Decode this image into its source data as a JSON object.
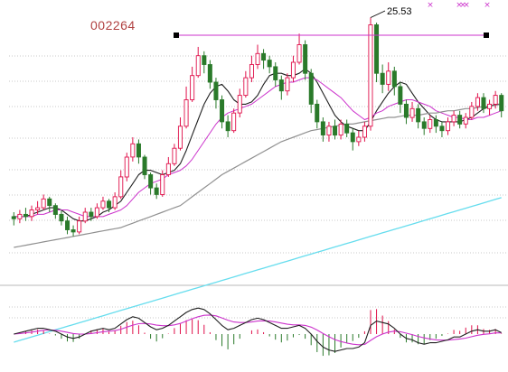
{
  "chart": {
    "stock_code": "002264",
    "high_label": "25.53",
    "colors": {
      "up": "#e0104a",
      "down": "#2a7a2a",
      "ma_short": "#202020",
      "ma_mid": "#cc33cc",
      "ma_long": "#909090",
      "ma_year": "#66ddee",
      "macd_dif": "#202020",
      "macd_dea": "#cc33cc",
      "marker": "#cc33cc",
      "bracket": "#cc33cc"
    }
  },
  "chart_data": {
    "type": "candlestick",
    "price_axis": {
      "ylim": [
        14.2,
        26.0
      ],
      "tick_labels_shown": false
    },
    "candles": [
      [
        16.5,
        16.4,
        16.7,
        16.1
      ],
      [
        16.4,
        16.6,
        16.8,
        16.2
      ],
      [
        16.6,
        16.5,
        16.9,
        16.3
      ],
      [
        16.5,
        16.8,
        17.0,
        16.3
      ],
      [
        16.8,
        16.9,
        17.2,
        16.6
      ],
      [
        16.9,
        17.3,
        17.5,
        16.8
      ],
      [
        17.3,
        17.0,
        17.4,
        16.7
      ],
      [
        17.0,
        16.6,
        17.1,
        16.4
      ],
      [
        16.6,
        16.3,
        16.8,
        16.1
      ],
      [
        16.3,
        15.9,
        16.5,
        15.7
      ],
      [
        15.9,
        15.8,
        16.1,
        15.6
      ],
      [
        15.8,
        16.3,
        16.5,
        15.7
      ],
      [
        16.3,
        16.7,
        16.9,
        16.2
      ],
      [
        16.7,
        16.5,
        16.9,
        16.3
      ],
      [
        16.5,
        16.9,
        17.1,
        16.4
      ],
      [
        16.9,
        17.2,
        17.4,
        16.8
      ],
      [
        17.2,
        16.9,
        17.3,
        16.7
      ],
      [
        16.9,
        17.4,
        17.6,
        16.8
      ],
      [
        17.4,
        18.3,
        18.6,
        17.3
      ],
      [
        18.3,
        19.2,
        19.4,
        18.1
      ],
      [
        19.2,
        19.8,
        20.1,
        19.0
      ],
      [
        19.8,
        19.2,
        20.0,
        18.9
      ],
      [
        19.2,
        18.4,
        19.3,
        18.2
      ],
      [
        18.4,
        17.8,
        18.5,
        17.5
      ],
      [
        17.8,
        17.5,
        18.0,
        17.3
      ],
      [
        17.5,
        18.4,
        18.6,
        17.4
      ],
      [
        18.4,
        18.9,
        19.2,
        18.3
      ],
      [
        18.9,
        19.6,
        19.8,
        18.8
      ],
      [
        19.6,
        20.6,
        21.0,
        19.5
      ],
      [
        20.6,
        21.8,
        22.4,
        20.5
      ],
      [
        21.8,
        22.9,
        23.3,
        21.7
      ],
      [
        22.9,
        23.8,
        24.2,
        22.8
      ],
      [
        23.8,
        23.4,
        24.0,
        23.0
      ],
      [
        23.4,
        22.6,
        23.6,
        22.3
      ],
      [
        22.6,
        21.8,
        22.8,
        21.4
      ],
      [
        21.8,
        20.8,
        22.0,
        20.5
      ],
      [
        20.8,
        20.4,
        21.1,
        20.1
      ],
      [
        20.4,
        21.2,
        21.4,
        20.3
      ],
      [
        21.2,
        22.0,
        22.3,
        21.0
      ],
      [
        22.0,
        22.8,
        23.1,
        21.9
      ],
      [
        22.8,
        23.4,
        23.8,
        22.6
      ],
      [
        23.4,
        23.9,
        24.3,
        23.2
      ],
      [
        23.9,
        23.6,
        24.1,
        23.2
      ],
      [
        23.6,
        23.3,
        23.8,
        23.0
      ],
      [
        23.3,
        22.7,
        23.5,
        22.4
      ],
      [
        22.7,
        22.2,
        22.9,
        21.8
      ],
      [
        22.2,
        22.8,
        23.0,
        22.0
      ],
      [
        22.8,
        23.5,
        23.8,
        22.6
      ],
      [
        23.5,
        24.3,
        24.8,
        23.4
      ],
      [
        24.3,
        23.0,
        24.5,
        22.7
      ],
      [
        23.0,
        21.6,
        23.2,
        21.2
      ],
      [
        21.6,
        20.8,
        21.8,
        20.5
      ],
      [
        20.8,
        20.2,
        21.0,
        19.9
      ],
      [
        20.2,
        20.6,
        20.8,
        19.9
      ],
      [
        20.6,
        20.2,
        20.9,
        20.0
      ],
      [
        20.2,
        20.7,
        20.9,
        20.0
      ],
      [
        20.7,
        20.3,
        20.9,
        20.1
      ],
      [
        20.3,
        19.9,
        20.5,
        19.5
      ],
      [
        19.9,
        20.1,
        20.4,
        19.7
      ],
      [
        20.1,
        20.6,
        20.8,
        19.9
      ],
      [
        20.6,
        25.2,
        25.53,
        20.4
      ],
      [
        25.2,
        23.0,
        25.3,
        22.6
      ],
      [
        23.0,
        22.5,
        23.4,
        22.1
      ],
      [
        22.5,
        23.1,
        23.5,
        22.2
      ],
      [
        23.1,
        22.4,
        23.3,
        22.0
      ],
      [
        22.4,
        21.6,
        22.6,
        21.2
      ],
      [
        21.6,
        21.0,
        21.8,
        20.7
      ],
      [
        21.0,
        21.4,
        21.7,
        20.8
      ],
      [
        21.4,
        20.8,
        21.6,
        20.5
      ],
      [
        20.8,
        20.5,
        21.0,
        20.2
      ],
      [
        20.5,
        20.9,
        21.1,
        20.3
      ],
      [
        20.9,
        20.6,
        21.1,
        20.3
      ],
      [
        20.6,
        20.4,
        20.8,
        20.1
      ],
      [
        20.4,
        20.8,
        21.0,
        20.2
      ],
      [
        20.8,
        21.1,
        21.3,
        20.6
      ],
      [
        21.1,
        20.7,
        21.3,
        20.5
      ],
      [
        20.7,
        21.0,
        21.2,
        20.5
      ],
      [
        21.0,
        21.5,
        21.7,
        20.9
      ],
      [
        21.5,
        21.9,
        22.1,
        21.3
      ],
      [
        21.9,
        21.4,
        22.1,
        21.2
      ],
      [
        21.4,
        21.6,
        21.8,
        21.1
      ],
      [
        21.6,
        22.0,
        22.2,
        21.4
      ],
      [
        22.0,
        21.3,
        22.1,
        21.0
      ]
    ],
    "moving_averages": [
      {
        "name": "MA-short",
        "values": [
          16.5,
          16.5,
          16.5,
          16.6,
          16.7,
          16.8,
          16.9,
          16.9,
          16.8,
          16.6,
          16.4,
          16.3,
          16.3,
          16.4,
          16.5,
          16.7,
          16.8,
          17.0,
          17.2,
          17.6,
          18.0,
          18.4,
          18.6,
          18.6,
          18.5,
          18.4,
          18.5,
          18.6,
          18.9,
          19.5,
          20.2,
          20.9,
          21.6,
          22.1,
          22.4,
          22.5,
          22.2,
          21.8,
          21.6,
          21.6,
          21.7,
          22.0,
          22.5,
          22.9,
          23.0,
          23.0,
          22.9,
          22.9,
          23.0,
          23.2,
          23.0,
          22.6,
          22.1,
          21.6,
          21.1,
          20.8,
          20.6,
          20.5,
          20.4,
          20.4,
          20.8,
          21.3,
          21.7,
          22.1,
          22.4,
          22.6,
          22.5,
          22.1,
          21.7,
          21.4,
          21.1,
          20.9,
          20.8,
          20.8,
          20.8,
          20.8,
          20.9,
          21.0,
          21.2,
          21.4,
          21.5,
          21.6,
          21.6
        ]
      },
      {
        "name": "MA-mid",
        "values": [
          16.5,
          16.5,
          16.5,
          16.5,
          16.6,
          16.6,
          16.7,
          16.8,
          16.8,
          16.8,
          16.7,
          16.6,
          16.5,
          16.5,
          16.5,
          16.5,
          16.6,
          16.7,
          16.8,
          17.0,
          17.3,
          17.6,
          17.8,
          18.0,
          18.1,
          18.2,
          18.4,
          18.5,
          18.6,
          18.8,
          19.1,
          19.5,
          19.9,
          20.3,
          20.7,
          21.0,
          21.2,
          21.3,
          21.4,
          21.5,
          21.6,
          21.8,
          22.0,
          22.2,
          22.4,
          22.5,
          22.6,
          22.6,
          22.7,
          22.8,
          22.8,
          22.7,
          22.5,
          22.3,
          22.1,
          21.9,
          21.6,
          21.3,
          21.1,
          20.9,
          21.0,
          21.2,
          21.3,
          21.5,
          21.6,
          21.7,
          21.8,
          21.8,
          21.7,
          21.6,
          21.5,
          21.3,
          21.2,
          21.1,
          21.0,
          21.0,
          20.9,
          20.9,
          21.0,
          21.0,
          21.1,
          21.2,
          21.3
        ]
      },
      {
        "name": "MA-long",
        "values": [
          15.1,
          15.15,
          15.2,
          15.25,
          15.3,
          15.35,
          15.4,
          15.45,
          15.5,
          15.55,
          15.6,
          15.65,
          15.7,
          15.75,
          15.8,
          15.85,
          15.9,
          15.95,
          16.0,
          16.1,
          16.2,
          16.3,
          16.4,
          16.5,
          16.6,
          16.7,
          16.8,
          16.9,
          17.0,
          17.2,
          17.4,
          17.6,
          17.8,
          18.0,
          18.2,
          18.4,
          18.55,
          18.7,
          18.85,
          19.0,
          19.15,
          19.3,
          19.45,
          19.6,
          19.75,
          19.9,
          20.0,
          20.1,
          20.2,
          20.3,
          20.4,
          20.45,
          20.5,
          20.55,
          20.6,
          20.65,
          20.7,
          20.7,
          20.75,
          20.8,
          20.85,
          20.9,
          20.95,
          21.0,
          21.0,
          21.05,
          21.1,
          21.1,
          21.1,
          21.15,
          21.2,
          21.2,
          21.25,
          21.3,
          21.3,
          21.35,
          21.4,
          21.4,
          21.45,
          21.5,
          21.5,
          21.55,
          21.6
        ]
      },
      {
        "name": "MA-year",
        "values": [
          10.8,
          10.88,
          10.96,
          11.04,
          11.12,
          11.2,
          11.28,
          11.36,
          11.44,
          11.52,
          11.6,
          11.68,
          11.76,
          11.84,
          11.92,
          12.0,
          12.08,
          12.16,
          12.24,
          12.32,
          12.4,
          12.48,
          12.56,
          12.64,
          12.72,
          12.8,
          12.88,
          12.96,
          13.04,
          13.12,
          13.2,
          13.28,
          13.36,
          13.44,
          13.52,
          13.6,
          13.68,
          13.76,
          13.84,
          13.92,
          14.0,
          14.08,
          14.16,
          14.24,
          14.32,
          14.4,
          14.48,
          14.56,
          14.64,
          14.72,
          14.8,
          14.88,
          14.96,
          15.04,
          15.12,
          15.2,
          15.28,
          15.36,
          15.44,
          15.52,
          15.6,
          15.68,
          15.76,
          15.84,
          15.92,
          16.0,
          16.08,
          16.16,
          16.24,
          16.32,
          16.4,
          16.48,
          16.56,
          16.64,
          16.72,
          16.8,
          16.88,
          16.96,
          17.04,
          17.12,
          17.2,
          17.28,
          17.36
        ]
      }
    ],
    "high_marker": {
      "index": 60,
      "value": 25.53
    },
    "macd": {
      "ylim": [
        -1.0,
        1.0
      ],
      "dif": [
        0.0,
        0.05,
        0.1,
        0.15,
        0.2,
        0.2,
        0.15,
        0.1,
        0.0,
        -0.1,
        -0.15,
        -0.1,
        0.0,
        0.1,
        0.15,
        0.2,
        0.15,
        0.2,
        0.35,
        0.5,
        0.6,
        0.55,
        0.4,
        0.25,
        0.15,
        0.2,
        0.3,
        0.45,
        0.6,
        0.75,
        0.85,
        0.9,
        0.85,
        0.7,
        0.5,
        0.3,
        0.15,
        0.2,
        0.3,
        0.4,
        0.5,
        0.55,
        0.5,
        0.4,
        0.3,
        0.2,
        0.2,
        0.25,
        0.3,
        0.2,
        0.0,
        -0.25,
        -0.45,
        -0.55,
        -0.6,
        -0.55,
        -0.5,
        -0.5,
        -0.45,
        -0.3,
        0.3,
        0.45,
        0.4,
        0.35,
        0.2,
        0.0,
        -0.15,
        -0.2,
        -0.3,
        -0.35,
        -0.3,
        -0.3,
        -0.25,
        -0.2,
        -0.1,
        -0.1,
        0.0,
        0.1,
        0.15,
        0.1,
        0.1,
        0.15,
        0.05
      ],
      "dea": [
        0.0,
        0.02,
        0.04,
        0.07,
        0.1,
        0.13,
        0.14,
        0.13,
        0.1,
        0.06,
        0.02,
        0.0,
        0.0,
        0.02,
        0.05,
        0.08,
        0.1,
        0.12,
        0.17,
        0.24,
        0.31,
        0.36,
        0.37,
        0.35,
        0.31,
        0.29,
        0.29,
        0.32,
        0.37,
        0.45,
        0.53,
        0.6,
        0.65,
        0.66,
        0.63,
        0.56,
        0.48,
        0.42,
        0.4,
        0.4,
        0.42,
        0.45,
        0.46,
        0.45,
        0.42,
        0.38,
        0.34,
        0.32,
        0.32,
        0.3,
        0.24,
        0.14,
        0.02,
        -0.09,
        -0.19,
        -0.26,
        -0.31,
        -0.35,
        -0.37,
        -0.36,
        -0.22,
        -0.09,
        0.0,
        0.07,
        0.1,
        0.08,
        0.03,
        -0.02,
        -0.08,
        -0.13,
        -0.17,
        -0.2,
        -0.21,
        -0.21,
        -0.19,
        -0.17,
        -0.14,
        -0.09,
        -0.04,
        -0.01,
        0.01,
        0.04,
        0.04
      ]
    }
  }
}
